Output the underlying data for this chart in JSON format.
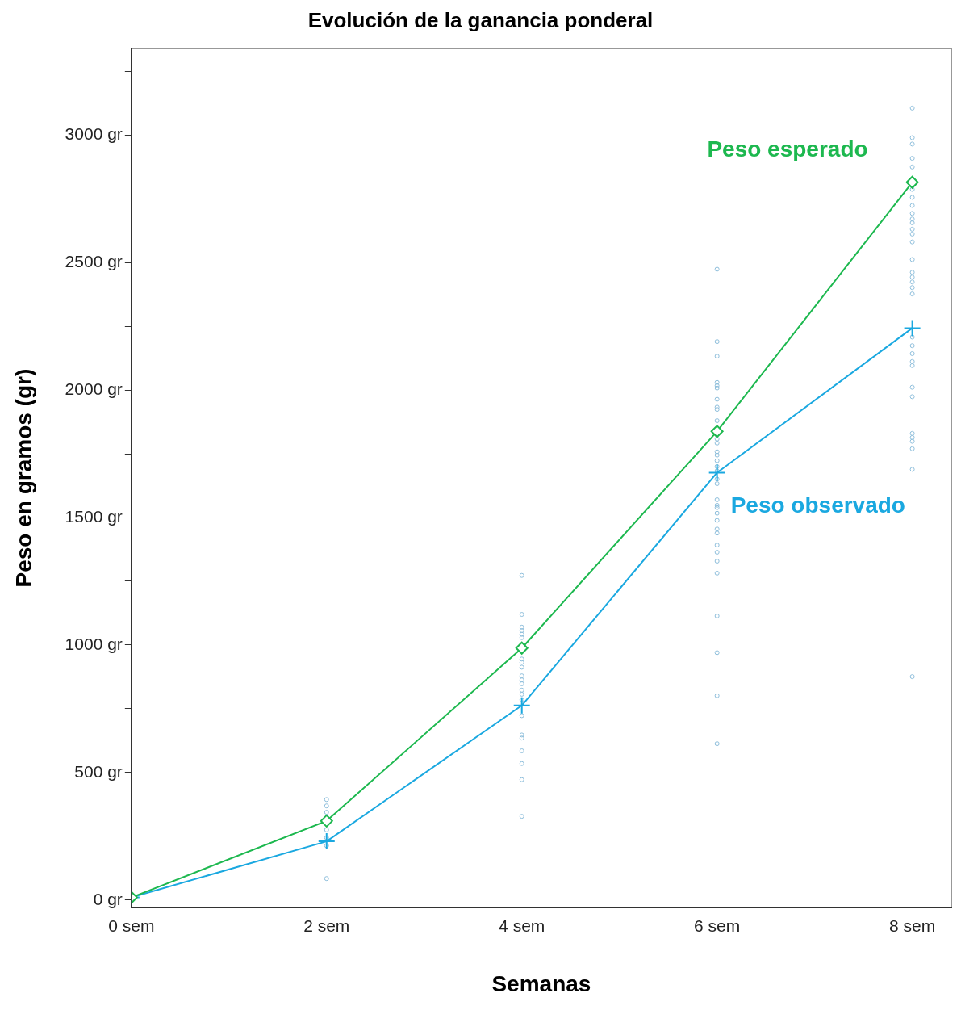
{
  "chart_data": {
    "type": "line",
    "title": "Evolución de la ganancia ponderal",
    "xlabel": "Semanas",
    "ylabel": "Peso en gramos (gr)",
    "xlim": [
      0,
      8.4
    ],
    "xticks": [
      {
        "value": 0,
        "label": "0 sem"
      },
      {
        "value": 2,
        "label": "2 sem"
      },
      {
        "value": 4,
        "label": "4 sem"
      },
      {
        "value": 6,
        "label": "6 sem"
      },
      {
        "value": 8,
        "label": "8 sem"
      }
    ],
    "ylim": [
      -30,
      3340
    ],
    "yticks": [
      {
        "value": 0,
        "label": "0 gr"
      },
      {
        "value": 250,
        "label": null
      },
      {
        "value": 500,
        "label": "500 gr"
      },
      {
        "value": 750,
        "label": null
      },
      {
        "value": 1000,
        "label": "1000 gr"
      },
      {
        "value": 1250,
        "label": null
      },
      {
        "value": 1500,
        "label": "1500 gr"
      },
      {
        "value": 1750,
        "label": null
      },
      {
        "value": 2000,
        "label": "2000 gr"
      },
      {
        "value": 2250,
        "label": null
      },
      {
        "value": 2500,
        "label": "2500 gr"
      },
      {
        "value": 2750,
        "label": null
      },
      {
        "value": 3000,
        "label": "3000 gr"
      },
      {
        "value": 3250,
        "label": null
      }
    ],
    "grid": false,
    "legend": false,
    "series": [
      {
        "type": "scatter",
        "marker": "circle",
        "color": "#8fbfdc",
        "x": [
          2,
          2,
          2,
          2,
          2,
          2,
          2,
          4,
          4,
          4,
          4,
          4,
          4,
          4,
          4,
          4,
          4,
          4,
          4,
          4,
          4,
          4,
          4,
          4,
          4,
          4,
          4,
          4,
          4,
          6,
          6,
          6,
          6,
          6,
          6,
          6,
          6,
          6,
          6,
          6,
          6,
          6,
          6,
          6,
          6,
          6,
          6,
          6,
          6,
          6,
          6,
          6,
          6,
          6,
          6,
          6,
          6,
          6,
          6,
          6,
          6,
          6,
          6,
          8,
          8,
          8,
          8,
          8,
          8,
          8,
          8,
          8,
          8,
          8,
          8,
          8,
          8,
          8,
          8,
          8,
          8,
          8,
          8,
          8,
          8,
          8,
          8,
          8,
          8,
          8,
          8,
          8,
          8,
          8,
          8,
          8
        ],
        "values": [
          394,
          369,
          344,
          275,
          244,
          213,
          84,
          1273,
          1120,
          1070,
          1057,
          1042,
          1029,
          945,
          932,
          913,
          879,
          863,
          848,
          823,
          807,
          785,
          723,
          647,
          635,
          585,
          535,
          472,
          328,
          2474,
          2190,
          2133,
          2030,
          2017,
          2008,
          1964,
          1933,
          1924,
          1880,
          1808,
          1792,
          1758,
          1745,
          1723,
          1651,
          1633,
          1570,
          1548,
          1539,
          1517,
          1489,
          1455,
          1439,
          1392,
          1364,
          1329,
          1282,
          1114,
          970,
          801,
          613,
          1683,
          1700,
          3106,
          2990,
          2965,
          2909,
          2875,
          2787,
          2756,
          2724,
          2693,
          2671,
          2656,
          2631,
          2612,
          2581,
          2512,
          2462,
          2443,
          2424,
          2402,
          2377,
          2208,
          2174,
          2143,
          2112,
          2096,
          2011,
          1974,
          1830,
          1814,
          1799,
          1770,
          1689,
          876
        ]
      },
      {
        "name": "Peso esperado",
        "marker": "diamond",
        "color": "#1db84f",
        "x": [
          0,
          2,
          4,
          6,
          8
        ],
        "values": [
          10,
          310,
          988,
          1838,
          2815
        ]
      },
      {
        "name": "Peso observado",
        "marker": "cross",
        "color": "#1aa8e0",
        "x": [
          0,
          2,
          4,
          6,
          8
        ],
        "values": [
          10,
          230,
          763,
          1676,
          2243
        ]
      }
    ]
  }
}
